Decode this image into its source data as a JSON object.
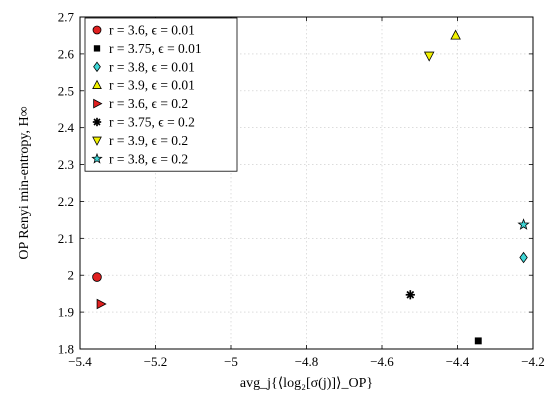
{
  "chart_data": {
    "type": "scatter",
    "xlabel": "avg_j{⟨log₂[σ(j)]⟩_OP}",
    "ylabel": "OP Renyi min-entropy, H∞",
    "xlim": [
      -5.4,
      -4.2
    ],
    "ylim": [
      1.8,
      2.7
    ],
    "xticks": [
      -5.4,
      -5.2,
      -5.0,
      -4.8,
      -4.6,
      -4.4,
      -4.2
    ],
    "xtick_labels": [
      "−5.4",
      "−5.2",
      "−5",
      "−4.8",
      "−4.6",
      "−4.4",
      "−4.2"
    ],
    "yticks": [
      1.8,
      1.9,
      2.0,
      2.1,
      2.2,
      2.3,
      2.4,
      2.5,
      2.6,
      2.7
    ],
    "ytick_labels": [
      "1.8",
      "1.9",
      "2",
      "2.1",
      "2.2",
      "2.3",
      "2.4",
      "2.5",
      "2.6",
      "2.7"
    ],
    "grid": true,
    "legend_position": "top-left",
    "series": [
      {
        "name": "r = 3.6, ϵ = 0.01",
        "marker": "circle",
        "color": "#e02020",
        "x": -5.355,
        "y": 1.995
      },
      {
        "name": "r = 3.75, ϵ = 0.01",
        "marker": "square",
        "color": "#000000",
        "x": -4.345,
        "y": 1.822
      },
      {
        "name": "r = 3.8, ϵ = 0.01",
        "marker": "diamond",
        "color": "#3fd6d6",
        "x": -4.225,
        "y": 2.048
      },
      {
        "name": "r = 3.9, ϵ = 0.01",
        "marker": "triangle-up",
        "color": "#f2f200",
        "x": -4.405,
        "y": 2.65
      },
      {
        "name": "r = 3.6, ϵ = 0.2",
        "marker": "triangle-right",
        "color": "#e02020",
        "x": -5.345,
        "y": 1.922
      },
      {
        "name": "r = 3.75, ϵ = 0.2",
        "marker": "asterisk",
        "color": "#000000",
        "x": -4.525,
        "y": 1.947
      },
      {
        "name": "r = 3.9, ϵ = 0.2",
        "marker": "triangle-down",
        "color": "#f2f200",
        "x": -4.475,
        "y": 2.595
      },
      {
        "name": "r = 3.8, ϵ = 0.2",
        "marker": "star",
        "color": "#3fd6d6",
        "x": -4.225,
        "y": 2.137
      }
    ]
  }
}
